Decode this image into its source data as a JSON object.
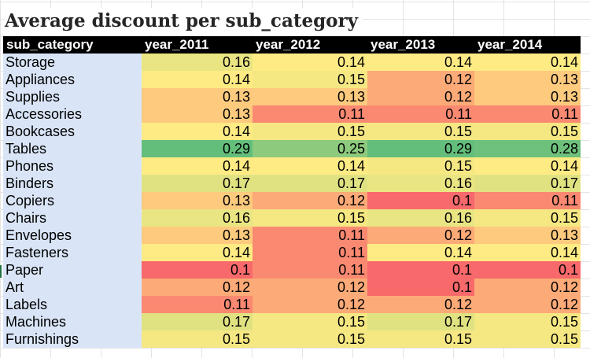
{
  "title": "Average discount per sub_category",
  "columns": [
    "sub_category",
    "year_2011",
    "year_2012",
    "year_2013",
    "year_2014"
  ],
  "rows": [
    {
      "name": "Storage",
      "values": [
        "0.16",
        "0.14",
        "0.14",
        "0.14"
      ]
    },
    {
      "name": "Appliances",
      "values": [
        "0.14",
        "0.15",
        "0.12",
        "0.13"
      ]
    },
    {
      "name": "Supplies",
      "values": [
        "0.13",
        "0.13",
        "0.12",
        "0.13"
      ]
    },
    {
      "name": "Accessories",
      "values": [
        "0.13",
        "0.11",
        "0.11",
        "0.11"
      ]
    },
    {
      "name": "Bookcases",
      "values": [
        "0.14",
        "0.15",
        "0.15",
        "0.15"
      ]
    },
    {
      "name": "Tables",
      "values": [
        "0.29",
        "0.25",
        "0.29",
        "0.28"
      ]
    },
    {
      "name": "Phones",
      "values": [
        "0.14",
        "0.14",
        "0.15",
        "0.14"
      ]
    },
    {
      "name": "Binders",
      "values": [
        "0.17",
        "0.17",
        "0.16",
        "0.17"
      ]
    },
    {
      "name": "Copiers",
      "values": [
        "0.13",
        "0.12",
        "0.1",
        "0.11"
      ]
    },
    {
      "name": "Chairs",
      "values": [
        "0.16",
        "0.15",
        "0.16",
        "0.15"
      ]
    },
    {
      "name": "Envelopes",
      "values": [
        "0.13",
        "0.11",
        "0.12",
        "0.13"
      ]
    },
    {
      "name": "Fasteners",
      "values": [
        "0.14",
        "0.11",
        "0.14",
        "0.14"
      ]
    },
    {
      "name": "Paper",
      "values": [
        "0.1",
        "0.11",
        "0.1",
        "0.1"
      ]
    },
    {
      "name": "Art",
      "values": [
        "0.12",
        "0.12",
        "0.1",
        "0.12"
      ]
    },
    {
      "name": "Labels",
      "values": [
        "0.11",
        "0.12",
        "0.12",
        "0.12"
      ]
    },
    {
      "name": "Machines",
      "values": [
        "0.17",
        "0.15",
        "0.17",
        "0.15"
      ]
    },
    {
      "name": "Furnishings",
      "values": [
        "0.15",
        "0.15",
        "0.15",
        "0.15"
      ]
    }
  ],
  "color_scale": {
    "low": "#f8696b",
    "mid": "#ffeb84",
    "high": "#63be7b"
  },
  "chart_data": {
    "type": "heatmap",
    "title": "Average discount per sub_category",
    "x_categories": [
      "year_2011",
      "year_2012",
      "year_2013",
      "year_2014"
    ],
    "y_categories": [
      "Storage",
      "Appliances",
      "Supplies",
      "Accessories",
      "Bookcases",
      "Tables",
      "Phones",
      "Binders",
      "Copiers",
      "Chairs",
      "Envelopes",
      "Fasteners",
      "Paper",
      "Art",
      "Labels",
      "Machines",
      "Furnishings"
    ],
    "values": [
      [
        0.16,
        0.14,
        0.14,
        0.14
      ],
      [
        0.14,
        0.15,
        0.12,
        0.13
      ],
      [
        0.13,
        0.13,
        0.12,
        0.13
      ],
      [
        0.13,
        0.11,
        0.11,
        0.11
      ],
      [
        0.14,
        0.15,
        0.15,
        0.15
      ],
      [
        0.29,
        0.25,
        0.29,
        0.28
      ],
      [
        0.14,
        0.14,
        0.15,
        0.14
      ],
      [
        0.17,
        0.17,
        0.16,
        0.17
      ],
      [
        0.13,
        0.12,
        0.1,
        0.11
      ],
      [
        0.16,
        0.15,
        0.16,
        0.15
      ],
      [
        0.13,
        0.11,
        0.12,
        0.13
      ],
      [
        0.14,
        0.11,
        0.14,
        0.14
      ],
      [
        0.1,
        0.11,
        0.1,
        0.1
      ],
      [
        0.12,
        0.12,
        0.1,
        0.12
      ],
      [
        0.11,
        0.12,
        0.12,
        0.12
      ],
      [
        0.17,
        0.15,
        0.17,
        0.15
      ],
      [
        0.15,
        0.15,
        0.15,
        0.15
      ]
    ]
  }
}
